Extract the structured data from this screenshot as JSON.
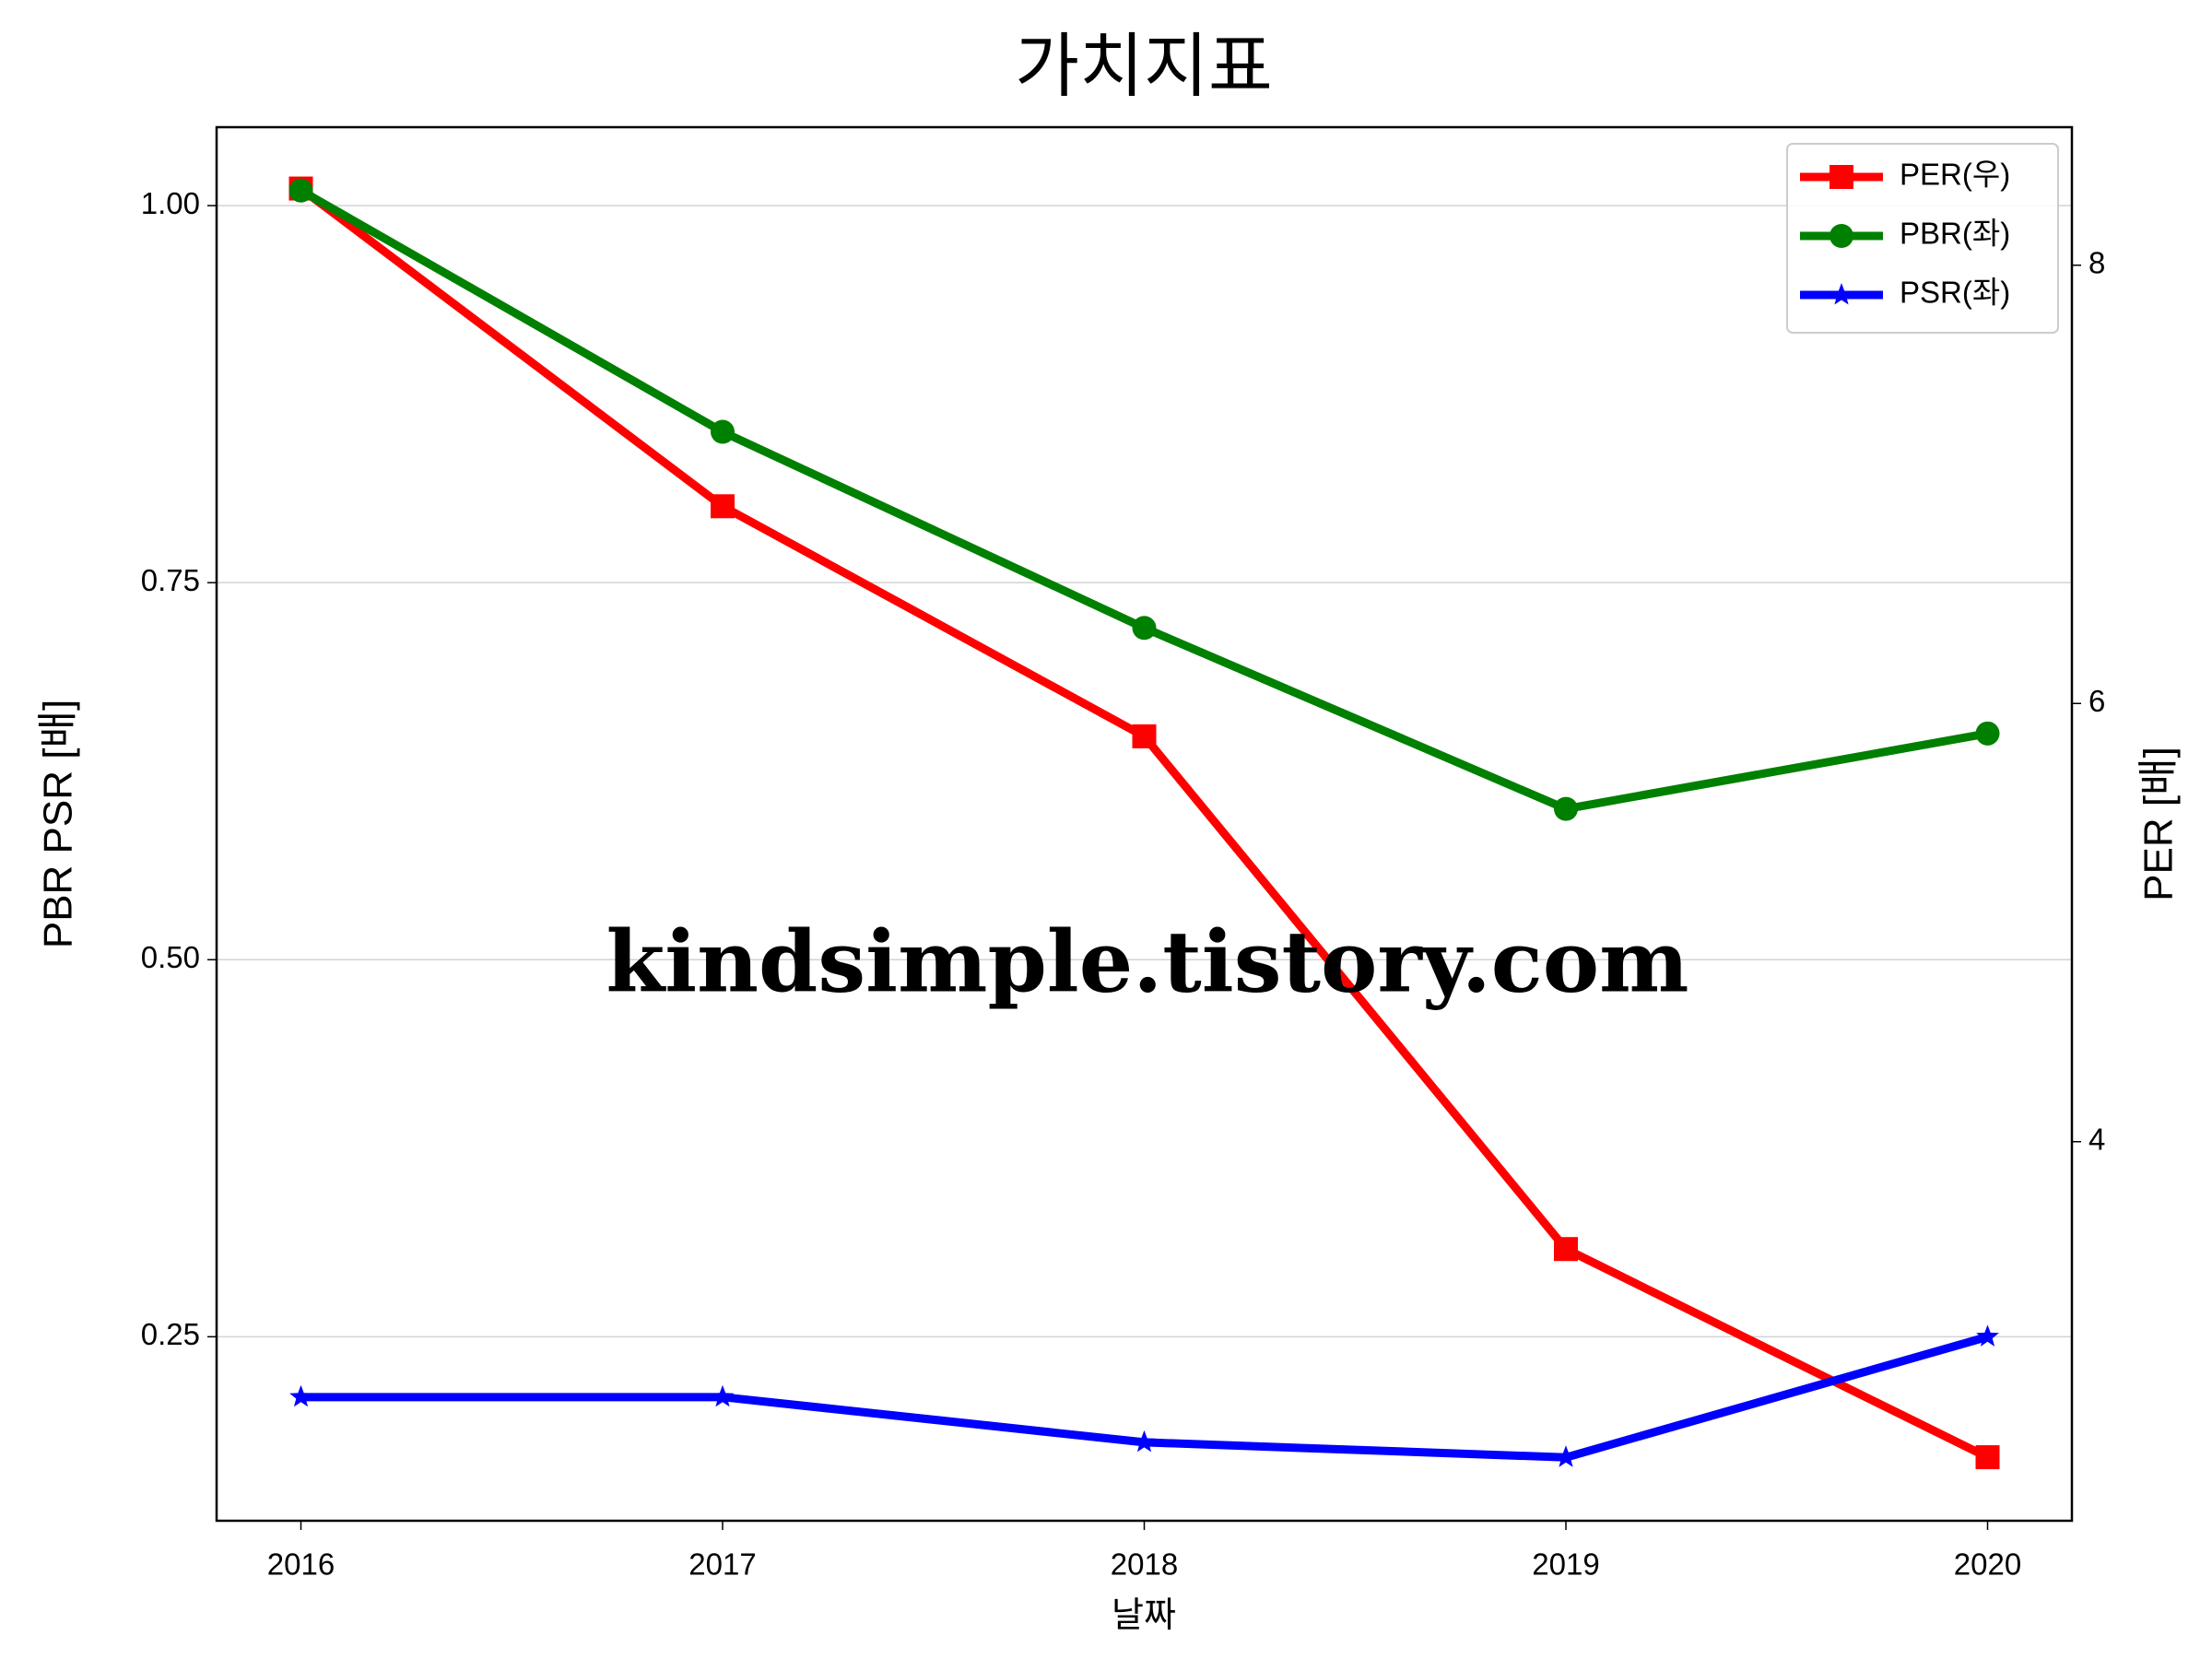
{
  "chart_data": {
    "type": "line",
    "title": "가치지표",
    "xlabel": "날짜",
    "ylabel": "PBR PSR [배]",
    "y2label": "PER [배]",
    "ylabel_color": "#008000",
    "y2label_color": "#ff0000",
    "annotation": "kindsimple.tistory.com",
    "x": [
      2016,
      2017,
      2018,
      2019,
      2020
    ],
    "xlim": [
      2015.8,
      2020.2
    ],
    "xticks": [
      2016,
      2017,
      2018,
      2019,
      2020
    ],
    "ylim": [
      0.128,
      1.052
    ],
    "yticks": [
      {
        "value": 0.25,
        "label": "0.25"
      },
      {
        "value": 0.5,
        "label": "0.50"
      },
      {
        "value": 0.75,
        "label": "0.75"
      },
      {
        "value": 1.0,
        "label": "1.00"
      }
    ],
    "y2lim": [
      2.27,
      8.63
    ],
    "y2ticks": [
      4,
      6,
      8
    ],
    "grid": true,
    "legend": "upper right",
    "series": [
      {
        "name": "PER(우)",
        "color": "#ff0000",
        "marker": "square",
        "axis": "y2",
        "values": [
          8.35,
          6.9,
          5.85,
          3.51,
          2.56
        ]
      },
      {
        "name": "PBR(좌)",
        "color": "#008000",
        "marker": "circle",
        "values": [
          1.01,
          0.85,
          0.72,
          0.6,
          0.65
        ]
      },
      {
        "name": "PSR(좌)",
        "color": "#0000ff",
        "marker": "star",
        "values": [
          0.21,
          0.21,
          0.18,
          0.17,
          0.25
        ]
      }
    ]
  }
}
